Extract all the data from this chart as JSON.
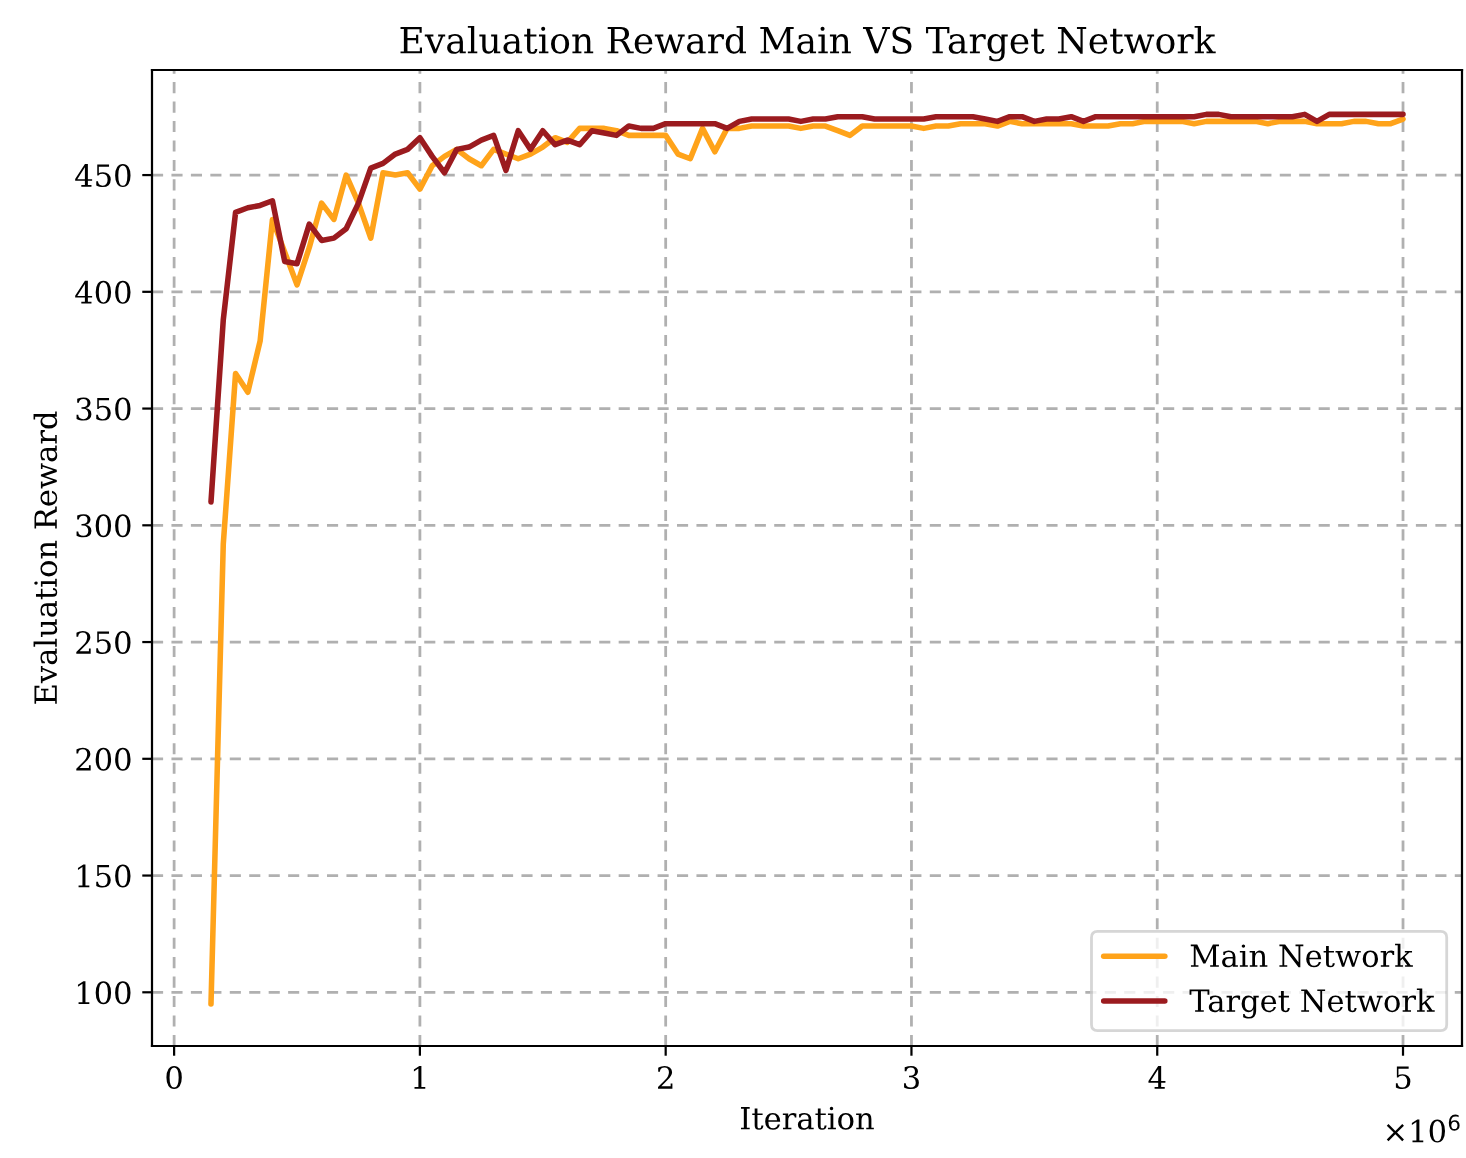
{
  "chart_data": {
    "type": "line",
    "title": "Evaluation Reward Main VS Target Network",
    "xlabel": "Iteration",
    "ylabel": "Evaluation Reward",
    "annotations": [
      "×10$^{6}$"
    ],
    "x": [
      0.15,
      0.2,
      0.25,
      0.3,
      0.35,
      0.4,
      0.45,
      0.5,
      0.55,
      0.6,
      0.65,
      0.7,
      0.75,
      0.8,
      0.85,
      0.9,
      0.95,
      1.0,
      1.05,
      1.1,
      1.15,
      1.2,
      1.25,
      1.3,
      1.35,
      1.4,
      1.45,
      1.5,
      1.55,
      1.6,
      1.65,
      1.7,
      1.75,
      1.8,
      1.85,
      1.9,
      1.95,
      2.0,
      2.05,
      2.1,
      2.15,
      2.2,
      2.25,
      2.3,
      2.35,
      2.4,
      2.45,
      2.5,
      2.55,
      2.6,
      2.65,
      2.7,
      2.75,
      2.8,
      2.85,
      2.9,
      2.95,
      3.0,
      3.05,
      3.1,
      3.15,
      3.2,
      3.25,
      3.3,
      3.35,
      3.4,
      3.45,
      3.5,
      3.55,
      3.6,
      3.65,
      3.7,
      3.75,
      3.8,
      3.85,
      3.9,
      3.95,
      4.0,
      4.05,
      4.1,
      4.15,
      4.2,
      4.25,
      4.3,
      4.35,
      4.4,
      4.45,
      4.5,
      4.55,
      4.6,
      4.65,
      4.7,
      4.75,
      4.8,
      4.85,
      4.9,
      4.95,
      5.0
    ],
    "series": [
      {
        "name": "Main Network",
        "color": "#ffa31a",
        "values": [
          95,
          292,
          365,
          357,
          379,
          431,
          417,
          403,
          419,
          438,
          431,
          450,
          438,
          423,
          451,
          450,
          451,
          444,
          454,
          458,
          461,
          457,
          454,
          461,
          459,
          457,
          459,
          462,
          466,
          464,
          470,
          470,
          470,
          469,
          467,
          467,
          467,
          467,
          459,
          457,
          470,
          460,
          470,
          470,
          471,
          471,
          471,
          471,
          470,
          471,
          471,
          469,
          467,
          471,
          471,
          471,
          471,
          471,
          470,
          471,
          471,
          472,
          472,
          472,
          471,
          473,
          472,
          472,
          472,
          472,
          472,
          471,
          471,
          471,
          472,
          472,
          473,
          473,
          473,
          473,
          472,
          473,
          473,
          473,
          473,
          473,
          472,
          473,
          473,
          473,
          472,
          472,
          472,
          473,
          473,
          472,
          472,
          474
        ]
      },
      {
        "name": "Target Network",
        "color": "#9b1b1f",
        "values": [
          310,
          388,
          434,
          436,
          437,
          439,
          413,
          412,
          429,
          422,
          423,
          427,
          438,
          453,
          455,
          459,
          461,
          466,
          458,
          451,
          461,
          462,
          465,
          467,
          452,
          469,
          461,
          469,
          463,
          465,
          463,
          469,
          468,
          467,
          471,
          470,
          470,
          472,
          472,
          472,
          472,
          472,
          470,
          473,
          474,
          474,
          474,
          474,
          473,
          474,
          474,
          475,
          475,
          475,
          474,
          474,
          474,
          474,
          474,
          475,
          475,
          475,
          475,
          474,
          473,
          475,
          475,
          473,
          474,
          474,
          475,
          473,
          475,
          475,
          475,
          475,
          475,
          475,
          475,
          475,
          475,
          476,
          476,
          475,
          475,
          475,
          475,
          475,
          475,
          476,
          473,
          476,
          476,
          476,
          476,
          476,
          476,
          476
        ]
      }
    ],
    "xlim": [
      -0.09,
      5.24
    ],
    "ylim": [
      77,
      495
    ],
    "xticks": [
      0,
      1,
      2,
      3,
      4,
      5
    ],
    "yticks": [
      100,
      150,
      200,
      250,
      300,
      350,
      400,
      450
    ],
    "grid": true,
    "legend": "bottom right",
    "line_style": "solid"
  }
}
